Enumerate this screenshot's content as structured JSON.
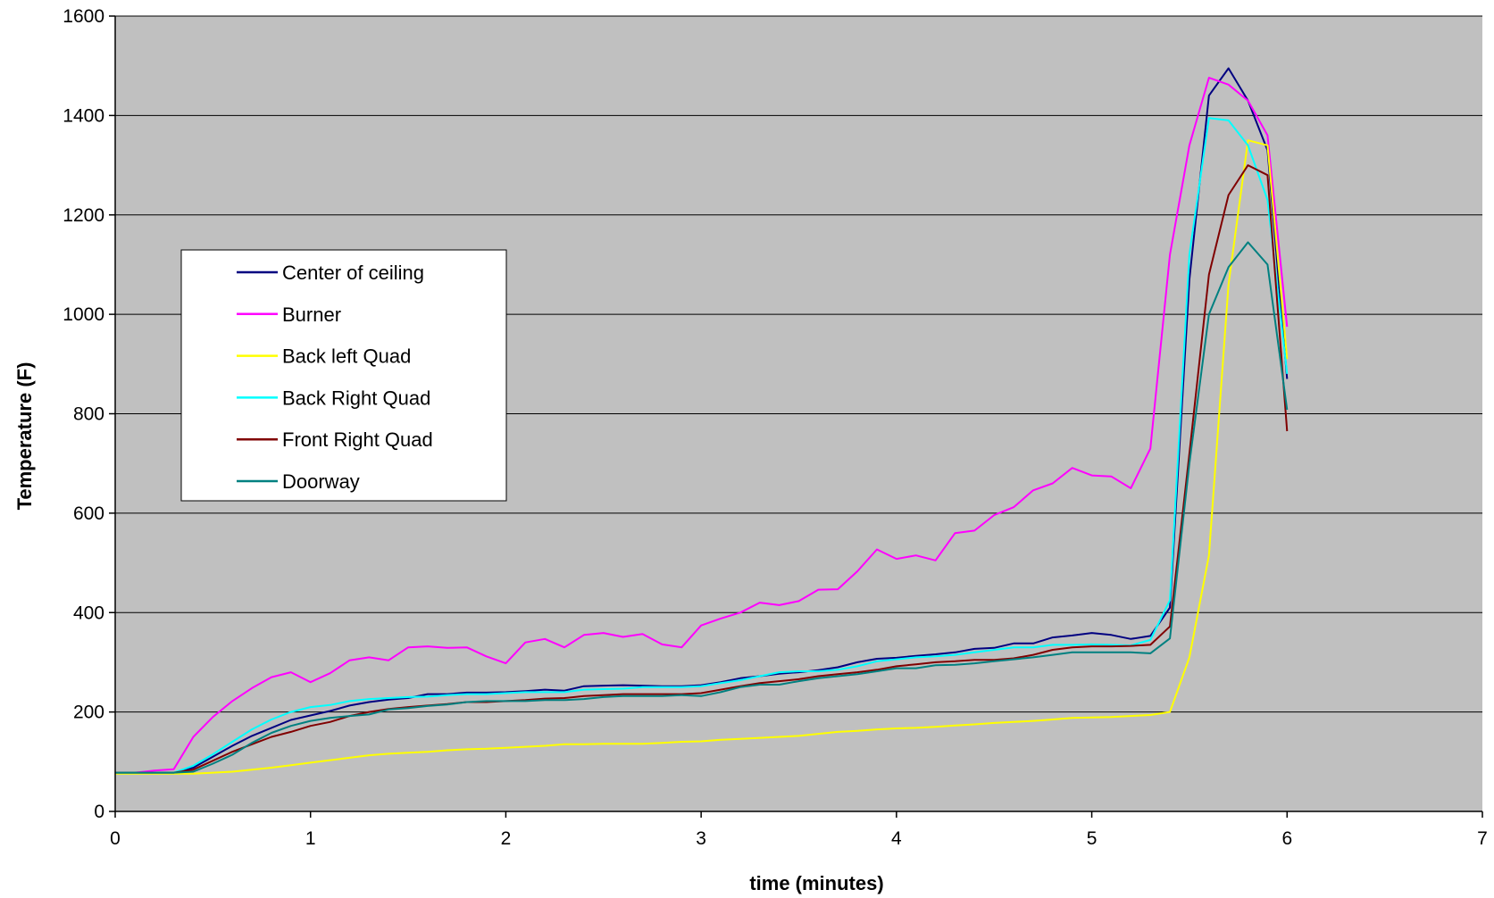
{
  "chart_data": {
    "type": "line",
    "title": "",
    "xlabel": "time (minutes)",
    "ylabel": "Temperature (F)",
    "xlim": [
      0,
      7
    ],
    "ylim": [
      0,
      1600
    ],
    "xticks": [
      0,
      1,
      2,
      3,
      4,
      5,
      6,
      7
    ],
    "yticks": [
      0,
      200,
      400,
      600,
      800,
      1000,
      1200,
      1400,
      1600
    ],
    "grid": "horizontal",
    "legend_position": "left",
    "colors": {
      "plot_background": "#c0c0c0",
      "gridline": "#000000"
    },
    "x": [
      0,
      0.1,
      0.2,
      0.3,
      0.4,
      0.5,
      0.6,
      0.7,
      0.8,
      0.9,
      1.0,
      1.1,
      1.2,
      1.3,
      1.4,
      1.5,
      1.6,
      1.7,
      1.8,
      1.9,
      2.0,
      2.1,
      2.2,
      2.3,
      2.4,
      2.5,
      2.6,
      2.7,
      2.8,
      2.9,
      3.0,
      3.1,
      3.2,
      3.3,
      3.4,
      3.5,
      3.6,
      3.7,
      3.8,
      3.9,
      4.0,
      4.1,
      4.2,
      4.3,
      4.4,
      4.5,
      4.6,
      4.7,
      4.8,
      4.9,
      5.0,
      5.1,
      5.2,
      5.3,
      5.4,
      5.5,
      5.6,
      5.7,
      5.8,
      5.9,
      6.0
    ],
    "series": [
      {
        "name": "Center of ceiling",
        "color": "#000080",
        "values": [
          78,
          78,
          78,
          78,
          88,
          110,
          132,
          152,
          168,
          184,
          193,
          202,
          213,
          220,
          225,
          228,
          236,
          236,
          239,
          239,
          240,
          242,
          245,
          243,
          252,
          253,
          254,
          253,
          252,
          252,
          254,
          260,
          268,
          272,
          277,
          280,
          284,
          290,
          300,
          307,
          309,
          313,
          316,
          320,
          327,
          329,
          338,
          338,
          350,
          354,
          359,
          355,
          347,
          353,
          410,
          1070,
          1440,
          1495,
          1430,
          1330,
          870
        ]
      },
      {
        "name": "Burner",
        "color": "#ff00ff",
        "values": [
          78,
          78,
          82,
          85,
          150,
          190,
          222,
          248,
          270,
          280,
          260,
          278,
          304,
          310,
          304,
          330,
          332,
          329,
          330,
          312,
          298,
          340,
          347,
          330,
          355,
          359,
          351,
          357,
          336,
          330,
          374,
          388,
          400,
          420,
          415,
          423,
          446,
          447,
          483,
          527,
          508,
          515,
          505,
          560,
          565,
          596,
          612,
          646,
          660,
          691,
          676,
          674,
          650,
          730,
          1120,
          1340,
          1476,
          1462,
          1430,
          1360,
          975
        ]
      },
      {
        "name": "Back left Quad",
        "color": "#ffff00",
        "values": [
          76,
          76,
          76,
          76,
          76,
          78,
          80,
          84,
          88,
          93,
          98,
          103,
          108,
          113,
          116,
          118,
          120,
          123,
          125,
          126,
          128,
          130,
          132,
          135,
          135,
          136,
          136,
          136,
          138,
          140,
          141,
          144,
          146,
          148,
          150,
          152,
          156,
          160,
          162,
          165,
          167,
          168,
          170,
          173,
          175,
          178,
          180,
          182,
          185,
          188,
          189,
          190,
          192,
          194,
          200,
          310,
          515,
          1060,
          1350,
          1340,
          910
        ]
      },
      {
        "name": "Back Right Quad",
        "color": "#00ffff",
        "values": [
          78,
          78,
          78,
          78,
          92,
          115,
          140,
          165,
          185,
          200,
          210,
          214,
          222,
          226,
          228,
          230,
          231,
          234,
          236,
          236,
          238,
          240,
          240,
          240,
          245,
          246,
          247,
          250,
          250,
          250,
          252,
          258,
          264,
          272,
          280,
          282,
          282,
          285,
          292,
          302,
          306,
          310,
          312,
          315,
          320,
          325,
          330,
          330,
          335,
          335,
          336,
          335,
          334,
          345,
          425,
          1120,
          1395,
          1390,
          1340,
          1230,
          880
        ]
      },
      {
        "name": "Front Right Quad",
        "color": "#800000",
        "values": [
          78,
          78,
          78,
          78,
          84,
          102,
          120,
          135,
          150,
          160,
          172,
          180,
          192,
          200,
          206,
          210,
          213,
          216,
          220,
          220,
          222,
          224,
          227,
          228,
          232,
          234,
          236,
          236,
          236,
          236,
          238,
          245,
          252,
          258,
          262,
          266,
          272,
          276,
          280,
          285,
          292,
          296,
          300,
          302,
          305,
          305,
          308,
          315,
          325,
          330,
          332,
          332,
          333,
          335,
          372,
          720,
          1080,
          1240,
          1300,
          1280,
          765
        ]
      },
      {
        "name": "Doorway",
        "color": "#008080",
        "values": [
          78,
          78,
          78,
          78,
          80,
          96,
          114,
          138,
          158,
          172,
          182,
          188,
          192,
          195,
          205,
          208,
          212,
          215,
          220,
          222,
          222,
          222,
          224,
          224,
          226,
          230,
          232,
          232,
          232,
          234,
          232,
          240,
          250,
          255,
          255,
          262,
          268,
          272,
          276,
          282,
          288,
          288,
          294,
          295,
          298,
          302,
          306,
          310,
          315,
          320,
          320,
          320,
          320,
          318,
          348,
          700,
          1000,
          1095,
          1145,
          1100,
          808
        ]
      }
    ]
  }
}
